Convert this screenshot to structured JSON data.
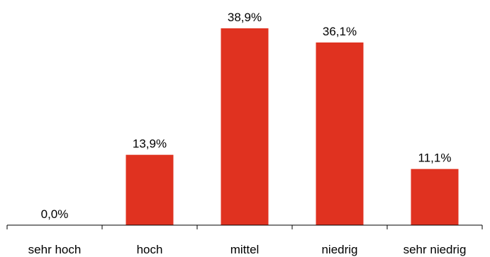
{
  "chart_data": {
    "type": "bar",
    "categories": [
      "sehr hoch",
      "hoch",
      "mittel",
      "niedrig",
      "sehr niedrig"
    ],
    "values": [
      0.0,
      13.9,
      38.9,
      36.1,
      11.1
    ],
    "value_labels": [
      "0,0%",
      "13,9%",
      "38,9%",
      "36,1%",
      "11,1%"
    ],
    "title": "",
    "xlabel": "",
    "ylabel": "",
    "ylim": [
      0,
      38.9
    ],
    "grid": false,
    "legend": "none",
    "bar_color": "#e03220"
  }
}
